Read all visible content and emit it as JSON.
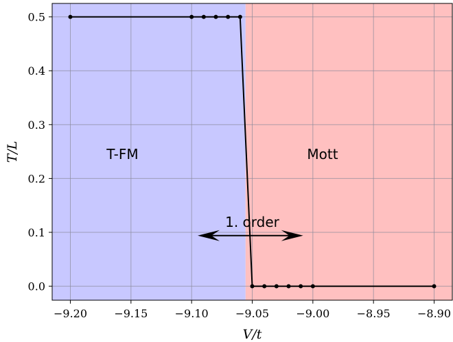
{
  "chart_data": {
    "type": "line",
    "xlabel": "V/t",
    "ylabel": "T/L",
    "xlim": [
      -9.215,
      -8.885
    ],
    "ylim": [
      -0.026,
      0.525
    ],
    "xticks": [
      -9.2,
      -9.15,
      -9.1,
      -9.05,
      -9.0,
      -8.95,
      -8.9
    ],
    "xtick_labels": [
      "−9.20",
      "−9.15",
      "−9.10",
      "−9.05",
      "−9.00",
      "−8.95",
      "−8.90"
    ],
    "yticks": [
      0.0,
      0.1,
      0.2,
      0.3,
      0.4,
      0.5
    ],
    "ytick_labels": [
      "0.0",
      "0.1",
      "0.2",
      "0.3",
      "0.4",
      "0.5"
    ],
    "grid": true,
    "series": [
      {
        "color": "#000000",
        "marker": "dot",
        "points": [
          {
            "x": -9.2,
            "y": 0.5
          },
          {
            "x": -9.1,
            "y": 0.5
          },
          {
            "x": -9.09,
            "y": 0.5
          },
          {
            "x": -9.08,
            "y": 0.5
          },
          {
            "x": -9.07,
            "y": 0.5
          },
          {
            "x": -9.06,
            "y": 0.5
          },
          {
            "x": -9.05,
            "y": 0.0
          },
          {
            "x": -9.04,
            "y": 0.0
          },
          {
            "x": -9.03,
            "y": 0.0
          },
          {
            "x": -9.02,
            "y": 0.0
          },
          {
            "x": -9.01,
            "y": 0.0
          },
          {
            "x": -9.0,
            "y": 0.0
          },
          {
            "x": -8.9,
            "y": 0.0
          }
        ]
      }
    ],
    "regions": [
      {
        "label": "T-FM",
        "color": "#c8c8ff",
        "x_from": -9.215,
        "x_to": -9.0555
      },
      {
        "label": "Mott",
        "color": "#ffc0c0",
        "x_from": -9.0555,
        "x_to": -8.885
      }
    ],
    "region_label_pos": [
      {
        "label": "T-FM",
        "x": -9.157,
        "y": 0.245
      },
      {
        "label": "Mott",
        "x": -8.992,
        "y": 0.245
      }
    ],
    "annotation": {
      "text": "1. order",
      "x": -9.05,
      "y": 0.118,
      "arrow_left": -9.095,
      "arrow_right": -9.008,
      "arrow_y": 0.094
    }
  }
}
